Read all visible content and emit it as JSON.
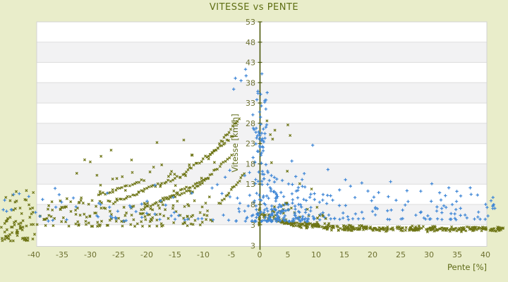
{
  "colors": {
    "background": "#e9edca",
    "plot_bg": "#ffffff",
    "band_alt": "#f2f2f3",
    "gridline": "#dddddd",
    "plot_border": "#d3d3d3",
    "axis_line": "#4e5a0e",
    "title": "#5e6e12",
    "tick_label": "#6d7030",
    "axis_title": "#5e6a16",
    "series_blue": "#3e86d6",
    "series_olive": "#6d7414"
  },
  "chart_data": {
    "type": "scatter",
    "title": "VITESSE vs PENTE",
    "seed": 1337,
    "grid": "horizontal-bands",
    "legend": "none",
    "x_axis": {
      "title": "Pente [%]",
      "ticks": [
        -40,
        -35,
        -30,
        -25,
        -20,
        -15,
        -10,
        -5,
        0,
        5,
        10,
        15,
        20,
        25,
        30,
        35,
        40
      ],
      "data_range": [
        -46,
        43.5
      ]
    },
    "y_axis": {
      "title": "Vitesse [km/h]",
      "ticks": [
        53,
        48,
        43,
        38,
        33,
        28,
        23,
        18,
        13,
        8,
        3
      ],
      "extra_bottom_label": "3",
      "axis_top": 53,
      "axis_bottom": -2.4
    },
    "series": [
      {
        "id": "olive-x-markers",
        "marker": "x",
        "color_key": "series_olive",
        "clusters": [
          {
            "type": "uniform",
            "n": 60,
            "p": [
              -46,
              -39.2
            ],
            "v": [
              -1,
              6.5
            ],
            "bias": 1.4
          },
          {
            "type": "uniform",
            "n": 16,
            "p": [
              -45.5,
              -39.5
            ],
            "v": [
              6.5,
              12
            ],
            "bias": 1
          },
          {
            "type": "uniform",
            "n": 112,
            "p": [
              -39.5,
              -8
            ],
            "v": [
              2.6,
              9
            ],
            "bias": 1.6
          },
          {
            "type": "wedge",
            "n": 72,
            "p": [
              -38,
              -8
            ],
            "v0": 5,
            "vref": 7,
            "pref": -40,
            "slope": 0.55,
            "bias": 1.7
          },
          {
            "type": "trace",
            "p": [
              -26,
              -14
            ],
            "v": [
              8.5,
              15
            ],
            "step": 0.38,
            "jp": 0.12,
            "jv": 0.35
          },
          {
            "type": "trace",
            "p": [
              -14,
              -4.6
            ],
            "v": [
              15,
              25
            ],
            "step": 0.33,
            "jp": 0.1,
            "jv": 0.4
          },
          {
            "type": "trace",
            "p": [
              -21,
              -12
            ],
            "v": [
              6.8,
              11.6
            ],
            "step": 0.4,
            "jp": 0.12,
            "jv": 0.3
          },
          {
            "type": "trace",
            "p": [
              -12.2,
              -5
            ],
            "v": [
              11,
              20
            ],
            "step": 0.34,
            "jp": 0.1,
            "jv": 0.35
          },
          {
            "type": "trace",
            "p": [
              -9,
              -3.4
            ],
            "v": [
              19.5,
              29.5
            ],
            "step": 0.3,
            "jp": 0.08,
            "jv": 0.4
          },
          {
            "type": "trace",
            "p": [
              -28.5,
              -20.5
            ],
            "v": [
              10.2,
              14
            ],
            "step": 0.42,
            "jp": 0.12,
            "jv": 0.3
          },
          {
            "type": "trace",
            "p": [
              -17.5,
              -9
            ],
            "v": [
              9,
              14.6
            ],
            "step": 0.38,
            "jp": 0.12,
            "jv": 0.35
          },
          {
            "type": "trace",
            "p": [
              -7.2,
              -2.6
            ],
            "v": [
              8,
              15.5
            ],
            "step": 0.3,
            "jp": 0.08,
            "jv": 0.35
          },
          {
            "type": "uniform",
            "n": 13,
            "p": [
              -37,
              -13
            ],
            "v": [
              14.5,
              25.5
            ],
            "bias": 1
          },
          {
            "type": "band",
            "n": 380,
            "p": [
              0.3,
              43.3
            ],
            "a": 2.0,
            "b": 3.9,
            "tau": 5.5,
            "sigma": 0.5,
            "spike_prob": 0.07,
            "spike_max": 2.6
          },
          {
            "type": "uniform",
            "n": 22,
            "p": [
              2.5,
              12
            ],
            "v": [
              4.5,
              8.5
            ],
            "bias": 1.3
          },
          {
            "type": "points",
            "pts": [
              [
                1.3,
                28.6
              ],
              [
                1.9,
                25.2
              ],
              [
                2.3,
                24.1
              ],
              [
                2.7,
                26.3
              ],
              [
                5,
                27.6
              ],
              [
                5.4,
                25
              ],
              [
                4.9,
                16.2
              ],
              [
                7.1,
                13.1
              ],
              [
                2.1,
                18.3
              ],
              [
                9.2,
                11.8
              ]
            ]
          },
          {
            "type": "uniform",
            "n": 12,
            "p": [
              -0.12,
              0.12
            ],
            "v": [
              2.8,
              7
            ],
            "bias": 1
          }
        ]
      },
      {
        "id": "blue-plus-markers",
        "marker": "plus",
        "color_key": "series_blue",
        "clusters": [
          {
            "type": "gauss",
            "n": 38,
            "pm": 0,
            "psd": 0.75,
            "pclip": [
              -2.2,
              2.2
            ],
            "v": [
              15.5,
              36
            ],
            "bias": 1.6
          },
          {
            "type": "gauss",
            "n": 13,
            "pm": 0.2,
            "psd": 0.55,
            "pclip": [
              -1.4,
              1.6
            ],
            "v": [
              21,
              26
            ],
            "bias": 1
          },
          {
            "type": "points",
            "pts": [
              [
                -2.5,
                41.3
              ],
              [
                -2.4,
                39.7
              ],
              [
                -3.3,
                38.5
              ],
              [
                -4.3,
                39.1
              ],
              [
                -4.6,
                36.4
              ],
              [
                0.4,
                40.2
              ],
              [
                -0.3,
                35.4
              ],
              [
                0.9,
                33.2
              ],
              [
                1.1,
                31.5
              ],
              [
                -1.2,
                30.1
              ]
            ]
          },
          {
            "type": "gauss",
            "n": 175,
            "pm": 2.6,
            "psd": 2.9,
            "pclip": [
              -4.2,
              9.5
            ],
            "v": [
              3.8,
              15.5
            ],
            "bias": 2.1
          },
          {
            "type": "uniform",
            "n": 130,
            "p": [
              6,
              41.8
            ],
            "v": [
              4.2,
              12.5
            ],
            "bias": 1.9
          },
          {
            "type": "uniform",
            "n": 52,
            "p": [
              -40,
              -4
            ],
            "v": [
              3.9,
              12.8
            ],
            "bias": 1.8
          },
          {
            "type": "uniform",
            "n": 8,
            "p": [
              -45.6,
              -40.2
            ],
            "v": [
              5.8,
              11.4
            ],
            "bias": 1
          },
          {
            "type": "points",
            "pts": [
              [
                9.4,
                22.6
              ],
              [
                5.7,
                18.7
              ],
              [
                12.1,
                16.6
              ],
              [
                15.2,
                14.1
              ],
              [
                7.9,
                15.6
              ],
              [
                18.1,
                13.3
              ],
              [
                23.2,
                13.6
              ],
              [
                30.5,
                13.1
              ]
            ]
          },
          {
            "type": "points",
            "pts": [
              [
                -5.3,
                16.4
              ],
              [
                -6.1,
                14.7
              ],
              [
                -7.5,
                12.9
              ],
              [
                -27,
                10.8
              ],
              [
                -33,
                9.6
              ]
            ]
          }
        ]
      }
    ]
  }
}
